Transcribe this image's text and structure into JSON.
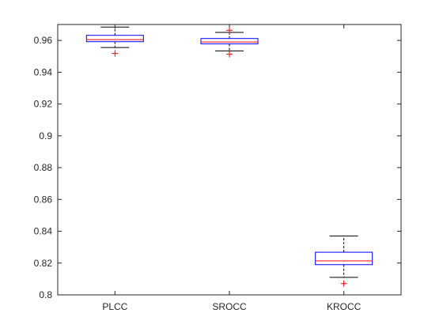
{
  "chart_data": {
    "type": "boxplot",
    "title": "",
    "xlabel": "",
    "ylabel": "",
    "ylim": [
      0.8,
      0.97
    ],
    "yticks": [
      0.8,
      0.82,
      0.84,
      0.86,
      0.88,
      0.9,
      0.92,
      0.94,
      0.96
    ],
    "ytick_labels": [
      "0.8",
      "0.82",
      "0.84",
      "0.86",
      "0.88",
      "0.9",
      "0.92",
      "0.94",
      "0.96"
    ],
    "categories": [
      "PLCC",
      "SROCC",
      "KROCC"
    ],
    "grid": false,
    "boxes": [
      {
        "label": "PLCC",
        "whisker_low": 0.9555,
        "q1": 0.9592,
        "median": 0.9605,
        "q3": 0.9632,
        "whisker_high": 0.9684,
        "outliers": [
          0.9518
        ]
      },
      {
        "label": "SROCC",
        "whisker_low": 0.9534,
        "q1": 0.9578,
        "median": 0.959,
        "q3": 0.9612,
        "whisker_high": 0.965,
        "outliers": [
          0.9513,
          0.9664
        ]
      },
      {
        "label": "KROCC",
        "whisker_low": 0.811,
        "q1": 0.819,
        "median": 0.8214,
        "q3": 0.8268,
        "whisker_high": 0.837,
        "outliers": [
          0.8071
        ]
      }
    ],
    "colors": {
      "box": "#0000ff",
      "median": "#ff0000",
      "whisker": "#000000",
      "outlier": "#ff0000",
      "axis": "#262626"
    }
  }
}
